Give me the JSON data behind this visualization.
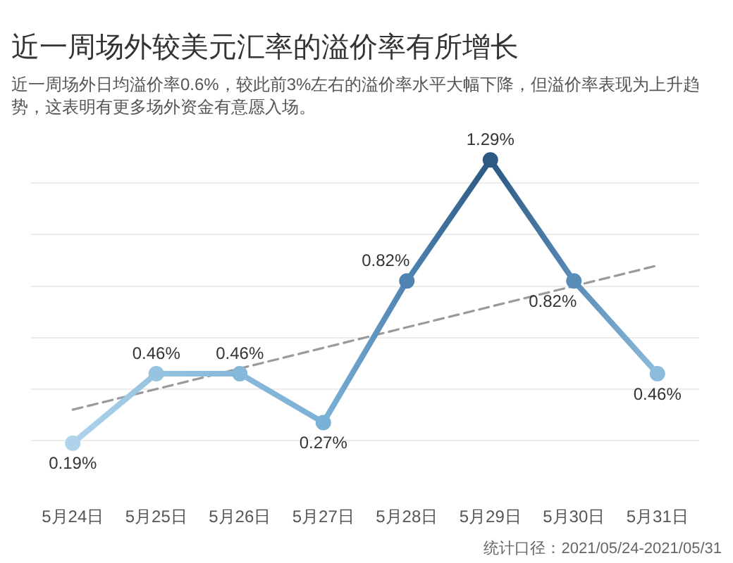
{
  "chart_data": {
    "type": "line",
    "title": "近一周场外较美元汇率的溢价率有所增长",
    "subtitle": "近一周场外日均溢价率0.6%，较此前3%左右的溢价率水平大幅下降，但溢价率表现为上升趋势，这表明有更多场外资金有意愿入场。",
    "annotations": [
      "统计口径：2021/05/24-2021/05/31"
    ],
    "categories": [
      "5月24日",
      "5月25日",
      "5月26日",
      "5月27日",
      "5月28日",
      "5月29日",
      "5月30日",
      "5月31日"
    ],
    "series": [
      {
        "colors": [
          "#aed3ea",
          "#95c3e0",
          "#86b8da",
          "#7cb1d7",
          "#4f84b2",
          "#2c5882",
          "#5a8cb8",
          "#8bbcdc"
        ],
        "values": [
          0.19,
          0.46,
          0.46,
          0.27,
          0.82,
          1.29,
          0.82,
          0.46
        ],
        "value_labels": [
          "0.19%",
          "0.46%",
          "0.46%",
          "0.27%",
          "0.82%",
          "1.29%",
          "0.82%",
          "0.46%"
        ]
      },
      {
        "type": "line",
        "x": [
          "5月24日",
          "5月31日"
        ],
        "values": [
          0.32,
          0.88
        ],
        "color": "#9a9a9a",
        "line_style": "dashed",
        "marker": "none"
      }
    ],
    "grid": "y",
    "tick_labels": "x",
    "legend": false,
    "marker": "circle"
  }
}
